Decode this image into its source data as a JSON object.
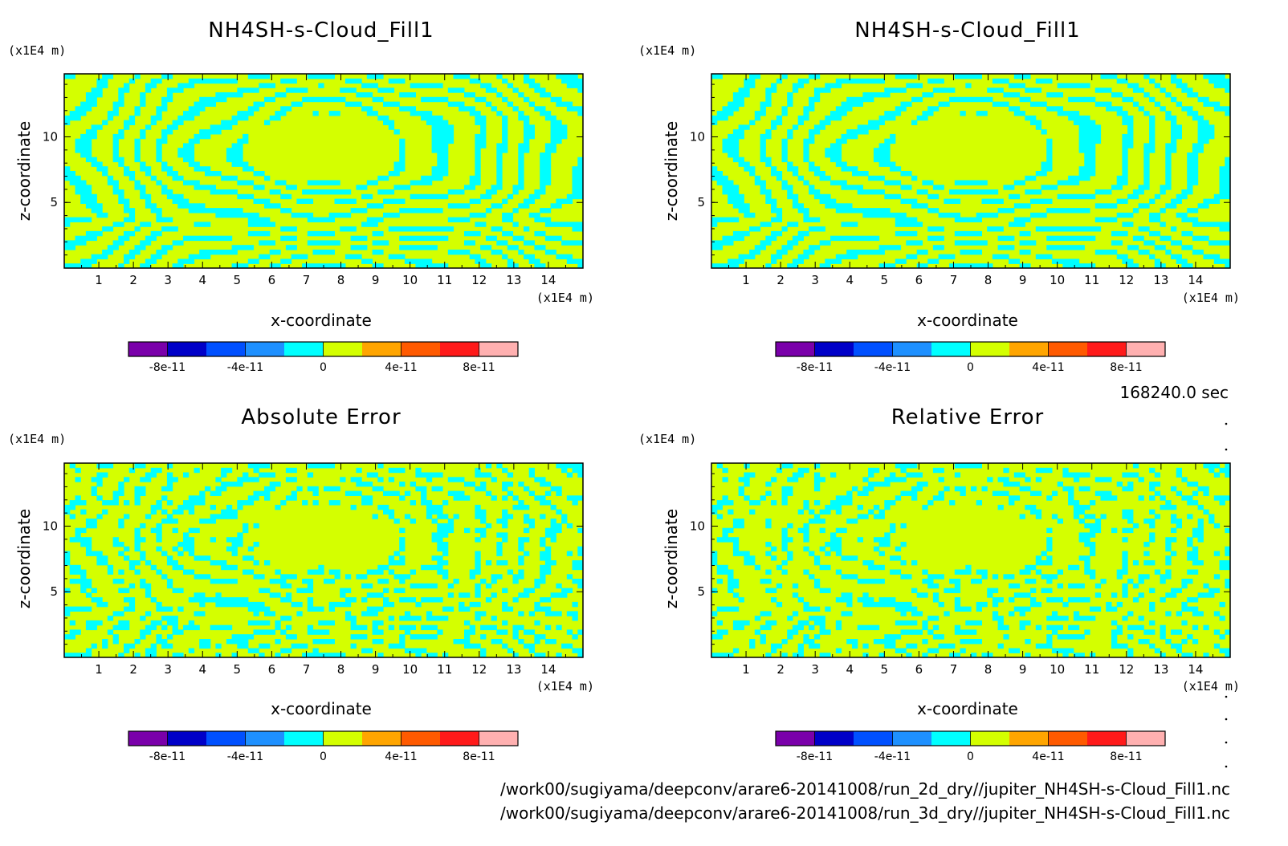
{
  "chart_data": [
    {
      "type": "heatmap",
      "title": "NH4SH-s-Cloud_Fill1",
      "xlabel": "x-coordinate",
      "ylabel": "z-coordinate",
      "x_unit": "(x1E4 m)",
      "y_unit": "(x1E4 m)",
      "xlim": [
        0,
        15
      ],
      "ylim": [
        0,
        14.8
      ],
      "x_ticks": [
        "1",
        "2",
        "3",
        "4",
        "5",
        "6",
        "7",
        "8",
        "9",
        "10",
        "11",
        "12",
        "13",
        "14"
      ],
      "y_ticks": [
        "5",
        "10"
      ],
      "pattern": "bands",
      "colorbar_labels": [
        "-8e-11",
        "-4e-11",
        "0",
        "4e-11",
        "8e-11"
      ]
    },
    {
      "type": "heatmap",
      "title": "NH4SH-s-Cloud_Fill1",
      "xlabel": "x-coordinate",
      "ylabel": "z-coordinate",
      "x_unit": "(x1E4 m)",
      "y_unit": "(x1E4 m)",
      "xlim": [
        0,
        15
      ],
      "ylim": [
        0,
        14.8
      ],
      "x_ticks": [
        "1",
        "2",
        "3",
        "4",
        "5",
        "6",
        "7",
        "8",
        "9",
        "10",
        "11",
        "12",
        "13",
        "14"
      ],
      "y_ticks": [
        "5",
        "10"
      ],
      "pattern": "bands",
      "colorbar_labels": [
        "-8e-11",
        "-4e-11",
        "0",
        "4e-11",
        "8e-11"
      ]
    },
    {
      "type": "heatmap",
      "title": "Absolute Error",
      "xlabel": "x-coordinate",
      "ylabel": "z-coordinate",
      "x_unit": "(x1E4 m)",
      "y_unit": "(x1E4 m)",
      "xlim": [
        0,
        15
      ],
      "ylim": [
        0,
        14.8
      ],
      "x_ticks": [
        "1",
        "2",
        "3",
        "4",
        "5",
        "6",
        "7",
        "8",
        "9",
        "10",
        "11",
        "12",
        "13",
        "14"
      ],
      "y_ticks": [
        "5",
        "10"
      ],
      "pattern": "noisy",
      "colorbar_labels": [
        "-8e-11",
        "-4e-11",
        "0",
        "4e-11",
        "8e-11"
      ]
    },
    {
      "type": "heatmap",
      "title": "Relative Error",
      "xlabel": "x-coordinate",
      "ylabel": "z-coordinate",
      "x_unit": "(x1E4 m)",
      "y_unit": "(x1E4 m)",
      "xlim": [
        0,
        15
      ],
      "ylim": [
        0,
        14.8
      ],
      "x_ticks": [
        "1",
        "2",
        "3",
        "4",
        "5",
        "6",
        "7",
        "8",
        "9",
        "10",
        "11",
        "12",
        "13",
        "14"
      ],
      "y_ticks": [
        "5",
        "10"
      ],
      "pattern": "noisy2",
      "colorbar_labels": [
        "-8e-11",
        "-4e-11",
        "0",
        "4e-11",
        "8e-11"
      ]
    }
  ],
  "colors": {
    "levels": [
      "#7a00aa",
      "#0000c8",
      "#0050ff",
      "#1e90ff",
      "#00ffff",
      "#d4ff00",
      "#ffa500",
      "#ff5a00",
      "#ff1a1a",
      "#ffb0b0"
    ],
    "field_base": "#d4ff00",
    "field_band": "#00ffff"
  },
  "time_label": "168240.0 sec",
  "footer": {
    "line1": "/work00/sugiyama/deepconv/arare6-20141008/run_2d_dry//jupiter_NH4SH-s-Cloud_Fill1.nc",
    "line2": "/work00/sugiyama/deepconv/arare6-20141008/run_3d_dry//jupiter_NH4SH-s-Cloud_Fill1.nc"
  }
}
